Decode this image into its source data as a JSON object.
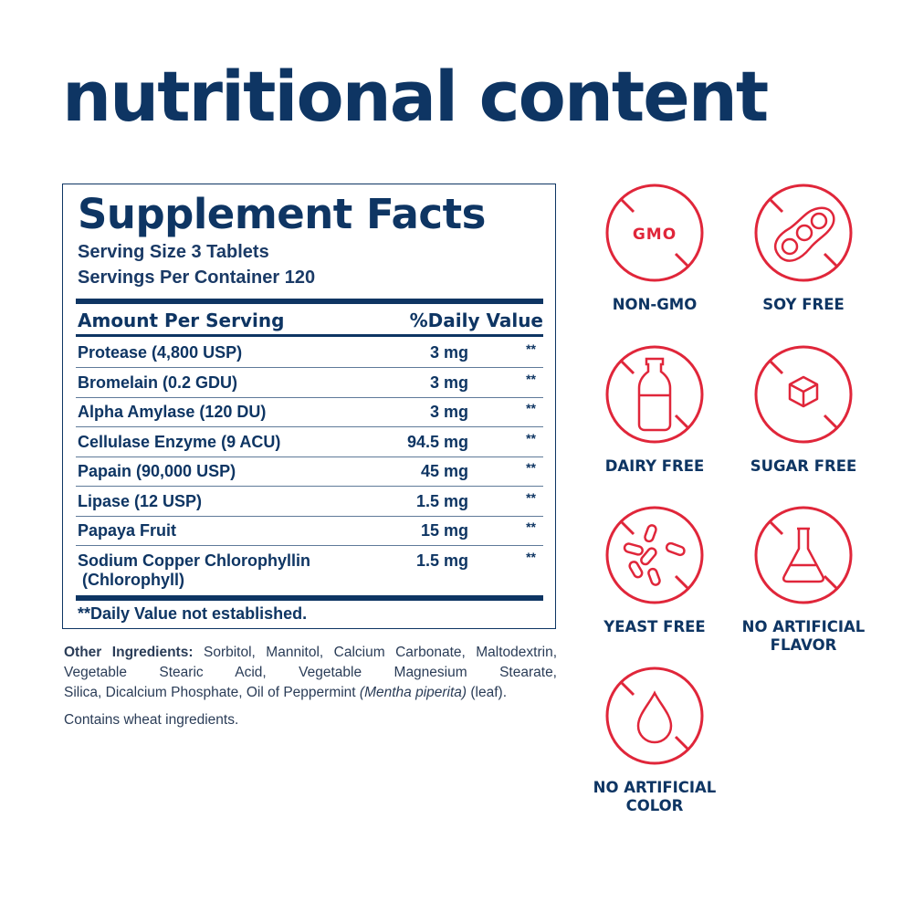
{
  "title": "nutritional content",
  "facts": {
    "title": "Supplement Facts",
    "serving_size": "Serving Size 3 Tablets",
    "servings_per_container": "Servings Per Container 120",
    "header_amount": "Amount Per Serving",
    "header_dv": "%Daily Value",
    "rows": [
      {
        "name": "Protease (4,800 USP)",
        "amount": "3 mg",
        "dv": "**"
      },
      {
        "name": "Bromelain (0.2 GDU)",
        "amount": "3 mg",
        "dv": "**"
      },
      {
        "name": "Alpha Amylase (120 DU)",
        "amount": "3 mg",
        "dv": "**"
      },
      {
        "name": "Cellulase Enzyme (9 ACU)",
        "amount": "94.5 mg",
        "dv": "**"
      },
      {
        "name": "Papain (90,000 USP)",
        "amount": "45 mg",
        "dv": "**"
      },
      {
        "name": "Lipase (12 USP)",
        "amount": "1.5 mg",
        "dv": "**"
      },
      {
        "name": "Papaya Fruit",
        "amount": "15 mg",
        "dv": "**"
      },
      {
        "name": "Sodium Copper Chlorophyllin",
        "name2": "(Chlorophyll)",
        "amount": "1.5 mg",
        "dv": "**"
      }
    ],
    "footnote": "**Daily Value not established."
  },
  "other_ingredients": {
    "label": "Other Ingredients:",
    "line1": "Sorbitol, Mannitol, Calcium Carbonate, Maltodextrin, Vegetable Stearic Acid, Vegetable Magnesium Stearate,",
    "line2a": "Silica, Dicalcium Phosphate, Oil of Peppermint ",
    "line2b": "(Mentha piperita)",
    "line2c": " (leaf).",
    "contains": "Contains wheat ingredients."
  },
  "badges": [
    {
      "icon": "no-gmo-icon",
      "label": "NON-GMO",
      "icon_text": "GMO"
    },
    {
      "icon": "no-soy-icon",
      "label": "SOY FREE"
    },
    {
      "icon": "no-dairy-icon",
      "label": "DAIRY FREE"
    },
    {
      "icon": "no-sugar-icon",
      "label": "SUGAR FREE"
    },
    {
      "icon": "no-yeast-icon",
      "label": "YEAST FREE"
    },
    {
      "icon": "no-artificial-flavor-icon",
      "label": "NO ARTIFICIAL",
      "label2": "FLAVOR"
    },
    {
      "icon": "no-artificial-color-icon",
      "label": "NO ARTIFICIAL",
      "label2": "COLOR"
    }
  ],
  "colors": {
    "navy": "#0e3563",
    "red": "#e0263a"
  }
}
